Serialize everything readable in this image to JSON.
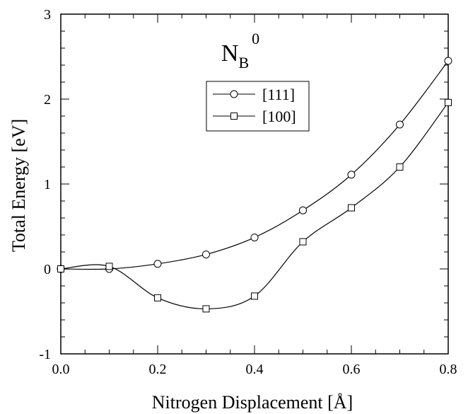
{
  "chart_data": {
    "type": "line",
    "title": "N",
    "title_sub": "B",
    "title_sup": "0",
    "xlabel": "Nitrogen Displacement  [Å]",
    "ylabel": "Total Energy  [eV]",
    "xlim": [
      0.0,
      0.8
    ],
    "ylim": [
      -1,
      3
    ],
    "xticks": [
      0.0,
      0.2,
      0.4,
      0.6,
      0.8
    ],
    "xtick_labels": [
      "0.0",
      "0.2",
      "0.4",
      "0.6",
      "0.8"
    ],
    "yticks": [
      -1,
      0,
      1,
      2,
      3
    ],
    "ytick_labels": [
      "-1",
      "0",
      "1",
      "2",
      "3"
    ],
    "grid": false,
    "legend_position": "upper-middle",
    "series": [
      {
        "name": "[111]",
        "marker": "circle",
        "x": [
          0.0,
          0.1,
          0.2,
          0.3,
          0.4,
          0.5,
          0.6,
          0.7,
          0.8
        ],
        "y": [
          0.0,
          0.0,
          0.06,
          0.17,
          0.37,
          0.69,
          1.11,
          1.7,
          2.45
        ]
      },
      {
        "name": "[100]",
        "marker": "square",
        "x": [
          0.0,
          0.1,
          0.2,
          0.3,
          0.4,
          0.5,
          0.6,
          0.7,
          0.8
        ],
        "y": [
          0.0,
          0.03,
          -0.34,
          -0.47,
          -0.32,
          0.32,
          0.72,
          1.2,
          1.96
        ]
      }
    ]
  }
}
